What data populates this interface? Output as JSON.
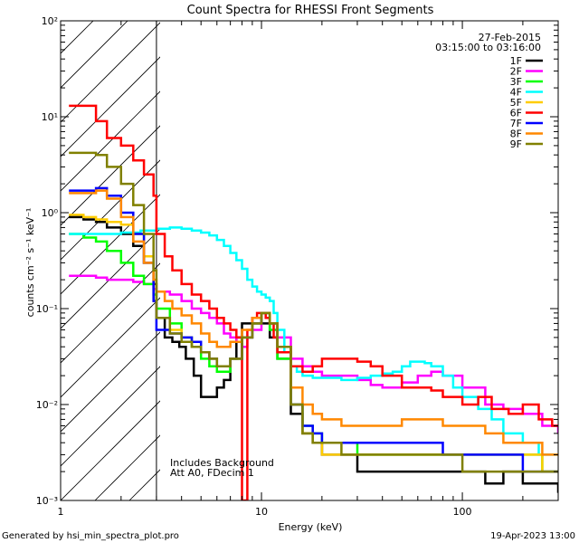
{
  "chart_data": {
    "type": "line",
    "title": "Count Spectra for RHESSI Front Segments",
    "xlabel": "Energy (keV)",
    "ylabel": "counts cm⁻² s⁻¹ keV⁻¹",
    "xscale": "log",
    "yscale": "log",
    "xlim": [
      1,
      300
    ],
    "ylim": [
      0.001,
      100
    ],
    "x_ticks": [
      {
        "value": 1,
        "label": "1"
      },
      {
        "value": 10,
        "label": "10"
      },
      {
        "value": 100,
        "label": "100"
      }
    ],
    "y_ticks": [
      {
        "value": 0.001,
        "label": "10⁻³"
      },
      {
        "value": 0.01,
        "label": "10⁻²"
      },
      {
        "value": 0.1,
        "label": "10⁻¹"
      },
      {
        "value": 1,
        "label": "10⁰"
      },
      {
        "value": 10,
        "label": "10¹"
      },
      {
        "value": 100,
        "label": "10²"
      }
    ],
    "date": "27-Feb-2015",
    "time_range": "03:15:00 to 03:16:00",
    "legend_position": "top-right",
    "excluded_region": {
      "x_max": 3
    },
    "annotations": [
      "Includes Background",
      "Att A0, FDecim 1"
    ],
    "series": [
      {
        "name": "1F",
        "color": "#000000",
        "x": [
          1.1,
          1.3,
          1.5,
          1.7,
          2.0,
          2.3,
          2.6,
          2.9,
          3.0,
          3.3,
          3.6,
          3.9,
          4.2,
          4.6,
          5,
          5.5,
          6,
          6.5,
          7,
          7.5,
          8,
          9,
          10,
          11,
          12,
          14,
          16,
          18,
          20,
          25,
          30,
          40,
          50,
          60,
          80,
          100,
          130,
          160,
          200,
          250,
          300
        ],
        "y": [
          0.9,
          0.85,
          0.8,
          0.7,
          0.6,
          0.45,
          0.3,
          0.18,
          0.08,
          0.05,
          0.045,
          0.04,
          0.03,
          0.02,
          0.012,
          0.012,
          0.015,
          0.018,
          0.03,
          0.05,
          0.07,
          0.08,
          0.07,
          0.05,
          0.03,
          0.008,
          0.005,
          0.004,
          0.003,
          0.003,
          0.002,
          0.002,
          0.002,
          0.002,
          0.002,
          0.002,
          0.0015,
          0.002,
          0.0015,
          0.0015,
          0.0012
        ]
      },
      {
        "name": "2F",
        "color": "#ff00ff",
        "x": [
          1.1,
          1.3,
          1.5,
          1.7,
          2.0,
          2.3,
          2.6,
          2.9,
          3.0,
          3.5,
          4,
          4.5,
          5,
          5.5,
          6,
          6.5,
          7,
          7.5,
          8,
          8.5,
          9,
          10,
          11,
          12,
          14,
          16,
          18,
          20,
          25,
          30,
          35,
          40,
          50,
          60,
          70,
          80,
          100,
          130,
          160,
          200,
          250,
          300
        ],
        "y": [
          0.22,
          0.22,
          0.21,
          0.2,
          0.2,
          0.19,
          0.18,
          0.16,
          0.15,
          0.14,
          0.12,
          0.1,
          0.09,
          0.08,
          0.07,
          0.055,
          0.05,
          0.045,
          0.04,
          0.05,
          0.06,
          0.09,
          0.07,
          0.05,
          0.03,
          0.025,
          0.022,
          0.02,
          0.02,
          0.018,
          0.016,
          0.015,
          0.017,
          0.02,
          0.022,
          0.02,
          0.015,
          0.01,
          0.009,
          0.008,
          0.006,
          0.005
        ]
      },
      {
        "name": "3F",
        "color": "#00ff00",
        "x": [
          1.1,
          1.3,
          1.5,
          1.7,
          2.0,
          2.3,
          2.6,
          2.9,
          3.0,
          3.5,
          4,
          4.5,
          5,
          5.5,
          6,
          7,
          8,
          9,
          10,
          11,
          12,
          14,
          16,
          18,
          20,
          25,
          30,
          40,
          50,
          60,
          80,
          100,
          130,
          160,
          200,
          250,
          300
        ],
        "y": [
          0.6,
          0.55,
          0.5,
          0.4,
          0.3,
          0.22,
          0.18,
          0.14,
          0.1,
          0.07,
          0.05,
          0.04,
          0.03,
          0.025,
          0.022,
          0.03,
          0.05,
          0.07,
          0.09,
          0.06,
          0.03,
          0.01,
          0.006,
          0.005,
          0.004,
          0.004,
          0.003,
          0.003,
          0.003,
          0.003,
          0.003,
          0.003,
          0.003,
          0.003,
          0.003,
          0.002,
          0.002
        ]
      },
      {
        "name": "4F",
        "color": "#00ffff",
        "x": [
          1.1,
          1.5,
          2,
          2.5,
          3,
          3.5,
          4,
          4.5,
          5,
          5.5,
          6,
          6.5,
          7,
          7.5,
          8,
          8.5,
          9,
          9.5,
          10,
          10.5,
          11,
          11.5,
          12,
          13,
          14,
          15,
          16,
          18,
          20,
          25,
          30,
          35,
          40,
          45,
          50,
          55,
          60,
          65,
          70,
          80,
          90,
          100,
          120,
          140,
          160,
          200,
          240,
          280,
          300
        ],
        "y": [
          0.6,
          0.6,
          0.62,
          0.65,
          0.68,
          0.7,
          0.68,
          0.65,
          0.62,
          0.58,
          0.52,
          0.45,
          0.38,
          0.32,
          0.26,
          0.2,
          0.17,
          0.15,
          0.14,
          0.13,
          0.12,
          0.09,
          0.06,
          0.035,
          0.025,
          0.022,
          0.02,
          0.019,
          0.019,
          0.018,
          0.019,
          0.02,
          0.021,
          0.022,
          0.025,
          0.028,
          0.028,
          0.027,
          0.025,
          0.02,
          0.015,
          0.012,
          0.009,
          0.007,
          0.005,
          0.004,
          0.003,
          0.003,
          0.003
        ]
      },
      {
        "name": "5F",
        "color": "#ffcc00",
        "x": [
          1.1,
          1.3,
          1.5,
          1.7,
          2.0,
          2.3,
          2.6,
          2.9,
          3.0,
          3.5,
          4,
          4.5,
          5,
          5.5,
          6,
          7,
          8,
          9,
          10,
          11,
          12,
          14,
          16,
          18,
          20,
          25,
          30,
          40,
          50,
          60,
          80,
          100,
          130,
          160,
          200,
          250,
          300
        ],
        "y": [
          0.95,
          0.9,
          0.85,
          0.8,
          0.75,
          0.6,
          0.35,
          0.12,
          0.08,
          0.06,
          0.05,
          0.04,
          0.035,
          0.03,
          0.025,
          0.03,
          0.05,
          0.07,
          0.09,
          0.07,
          0.04,
          0.01,
          0.005,
          0.004,
          0.003,
          0.003,
          0.003,
          0.003,
          0.003,
          0.003,
          0.003,
          0.003,
          0.003,
          0.003,
          0.003,
          0.002,
          0.002
        ]
      },
      {
        "name": "6F",
        "color": "#ff0000",
        "x": [
          1.1,
          1.3,
          1.5,
          1.7,
          2.0,
          2.3,
          2.6,
          2.9,
          3.0,
          3.3,
          3.6,
          4,
          4.5,
          5,
          5.5,
          6,
          6.5,
          7,
          7.5,
          8,
          8.5,
          9,
          9.5,
          10,
          10.5,
          11,
          11.5,
          12,
          14,
          16,
          18,
          20,
          25,
          30,
          35,
          40,
          50,
          60,
          70,
          80,
          100,
          120,
          140,
          170,
          200,
          240,
          280,
          300
        ],
        "y": [
          13,
          13,
          9,
          6,
          5,
          3.5,
          2.5,
          1.5,
          0.6,
          0.35,
          0.25,
          0.18,
          0.14,
          0.12,
          0.1,
          0.08,
          0.07,
          0.06,
          0.05,
          0.001,
          0.06,
          0.08,
          0.09,
          0.09,
          0.08,
          0.07,
          0.05,
          0.035,
          0.025,
          0.022,
          0.025,
          0.03,
          0.03,
          0.028,
          0.025,
          0.02,
          0.015,
          0.015,
          0.014,
          0.012,
          0.01,
          0.012,
          0.009,
          0.008,
          0.01,
          0.007,
          0.006,
          0.006
        ]
      },
      {
        "name": "7F",
        "color": "#0000ff",
        "x": [
          1.1,
          1.3,
          1.5,
          1.7,
          2.0,
          2.3,
          2.6,
          2.9,
          3.0,
          3.5,
          4,
          4.5,
          5,
          5.5,
          6,
          7,
          8,
          9,
          10,
          11,
          12,
          14,
          16,
          18,
          20,
          25,
          30,
          40,
          50,
          60,
          80,
          100,
          130,
          160,
          200,
          250,
          300
        ],
        "y": [
          1.7,
          1.7,
          1.8,
          1.5,
          1.0,
          0.6,
          0.3,
          0.12,
          0.06,
          0.055,
          0.05,
          0.045,
          0.035,
          0.03,
          0.025,
          0.03,
          0.05,
          0.07,
          0.09,
          0.07,
          0.04,
          0.01,
          0.006,
          0.005,
          0.004,
          0.004,
          0.004,
          0.004,
          0.004,
          0.004,
          0.003,
          0.003,
          0.003,
          0.003,
          0.002,
          0.002,
          0.002
        ]
      },
      {
        "name": "8F",
        "color": "#ff8800",
        "x": [
          1.1,
          1.3,
          1.5,
          1.7,
          2.0,
          2.3,
          2.6,
          2.9,
          3.0,
          3.3,
          3.6,
          4,
          4.5,
          5,
          5.5,
          6,
          7,
          8,
          9,
          10,
          11,
          12,
          14,
          16,
          18,
          20,
          25,
          30,
          40,
          50,
          60,
          80,
          100,
          130,
          160,
          200,
          250,
          300
        ],
        "y": [
          1.6,
          1.6,
          1.7,
          1.4,
          0.9,
          0.5,
          0.3,
          0.2,
          0.15,
          0.12,
          0.1,
          0.085,
          0.07,
          0.055,
          0.045,
          0.04,
          0.045,
          0.06,
          0.08,
          0.09,
          0.07,
          0.04,
          0.015,
          0.01,
          0.008,
          0.007,
          0.006,
          0.006,
          0.006,
          0.007,
          0.007,
          0.006,
          0.006,
          0.005,
          0.004,
          0.004,
          0.003,
          0.003
        ]
      },
      {
        "name": "9F",
        "color": "#808000",
        "x": [
          1.1,
          1.3,
          1.5,
          1.7,
          2.0,
          2.3,
          2.6,
          2.9,
          3.0,
          3.5,
          4,
          4.5,
          5,
          5.5,
          6,
          7,
          8,
          9,
          10,
          11,
          12,
          14,
          16,
          18,
          20,
          25,
          30,
          40,
          50,
          60,
          80,
          100,
          130,
          160,
          200,
          250,
          300
        ],
        "y": [
          4.2,
          4.2,
          4.0,
          3.0,
          2.0,
          1.2,
          0.6,
          0.25,
          0.08,
          0.055,
          0.045,
          0.04,
          0.035,
          0.03,
          0.025,
          0.03,
          0.05,
          0.07,
          0.09,
          0.07,
          0.04,
          0.01,
          0.005,
          0.004,
          0.004,
          0.003,
          0.003,
          0.003,
          0.003,
          0.003,
          0.003,
          0.002,
          0.002,
          0.002,
          0.002,
          0.002,
          0.002
        ]
      }
    ]
  },
  "footer": {
    "generated_by": "Generated by hsi_min_spectra_plot.pro",
    "timestamp": "19-Apr-2023 13:00"
  }
}
